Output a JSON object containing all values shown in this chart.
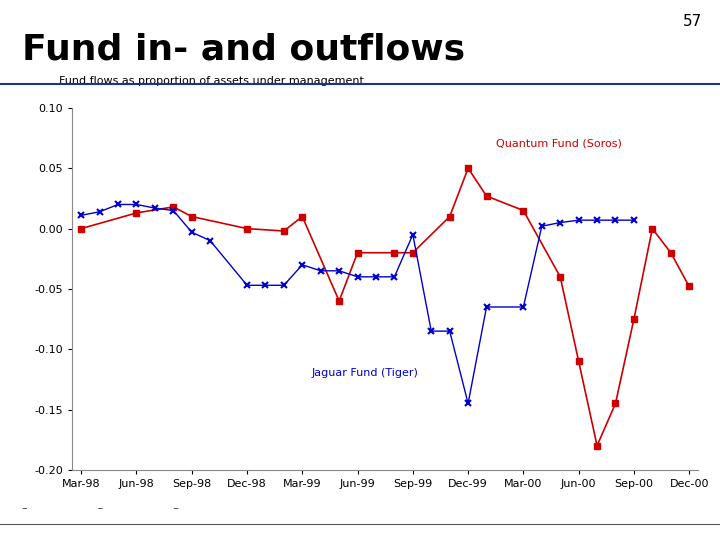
{
  "title": "Fund in- and outflows",
  "slide_number": "57",
  "chart_title": "Fund flows as proportion of assets under management",
  "x_labels": [
    "Mar-98",
    "Jun-98",
    "Sep-98",
    "Dec-98",
    "Mar-99",
    "Jun-99",
    "Sep-99",
    "Dec-99",
    "Mar-00",
    "Jun-00",
    "Sep-00",
    "Dec-00"
  ],
  "x_ticks": [
    0,
    3,
    6,
    9,
    12,
    15,
    18,
    21,
    24,
    27,
    30,
    33
  ],
  "quantum_label": "Quantum Fund (Soros)",
  "jaguar_label": "Jaguar Fund (Tiger)",
  "quantum_color": "#cc0000",
  "jaguar_color": "#0000cc",
  "ylim": [
    -0.2,
    0.1
  ],
  "yticks": [
    -0.2,
    -0.15,
    -0.1,
    -0.05,
    0.0,
    0.05,
    0.1
  ],
  "background_color": "#ffffff",
  "quantum_x": [
    0,
    3,
    5,
    6,
    9,
    11,
    12,
    14,
    15,
    17,
    18,
    20,
    21,
    22,
    24,
    26,
    27,
    28,
    29,
    30,
    31,
    32,
    33
  ],
  "quantum_y": [
    0.0,
    0.013,
    0.018,
    0.01,
    0.0,
    -0.002,
    0.01,
    -0.06,
    -0.02,
    -0.02,
    -0.02,
    0.01,
    0.05,
    0.027,
    0.015,
    -0.04,
    -0.11,
    -0.18,
    -0.145,
    -0.075,
    0.0,
    -0.02,
    -0.048
  ],
  "jaguar_x": [
    0,
    1,
    2,
    3,
    4,
    5,
    6,
    7,
    9,
    10,
    11,
    12,
    13,
    14,
    15,
    16,
    17,
    18,
    19,
    20,
    21,
    22,
    24,
    25,
    26,
    27,
    28,
    29,
    30
  ],
  "jaguar_y": [
    0.011,
    0.014,
    0.02,
    0.02,
    0.017,
    0.015,
    -0.003,
    -0.01,
    -0.047,
    -0.047,
    -0.047,
    -0.03,
    -0.035,
    -0.035,
    -0.04,
    -0.04,
    -0.04,
    -0.005,
    -0.085,
    -0.085,
    -0.145,
    -0.065,
    -0.065,
    0.002,
    0.005,
    0.007,
    0.007,
    0.007,
    0.007
  ],
  "title_fontsize": 26,
  "slide_num_fontsize": 11,
  "chart_title_fontsize": 8,
  "axis_label_fontsize": 8,
  "annotation_fontsize": 8
}
